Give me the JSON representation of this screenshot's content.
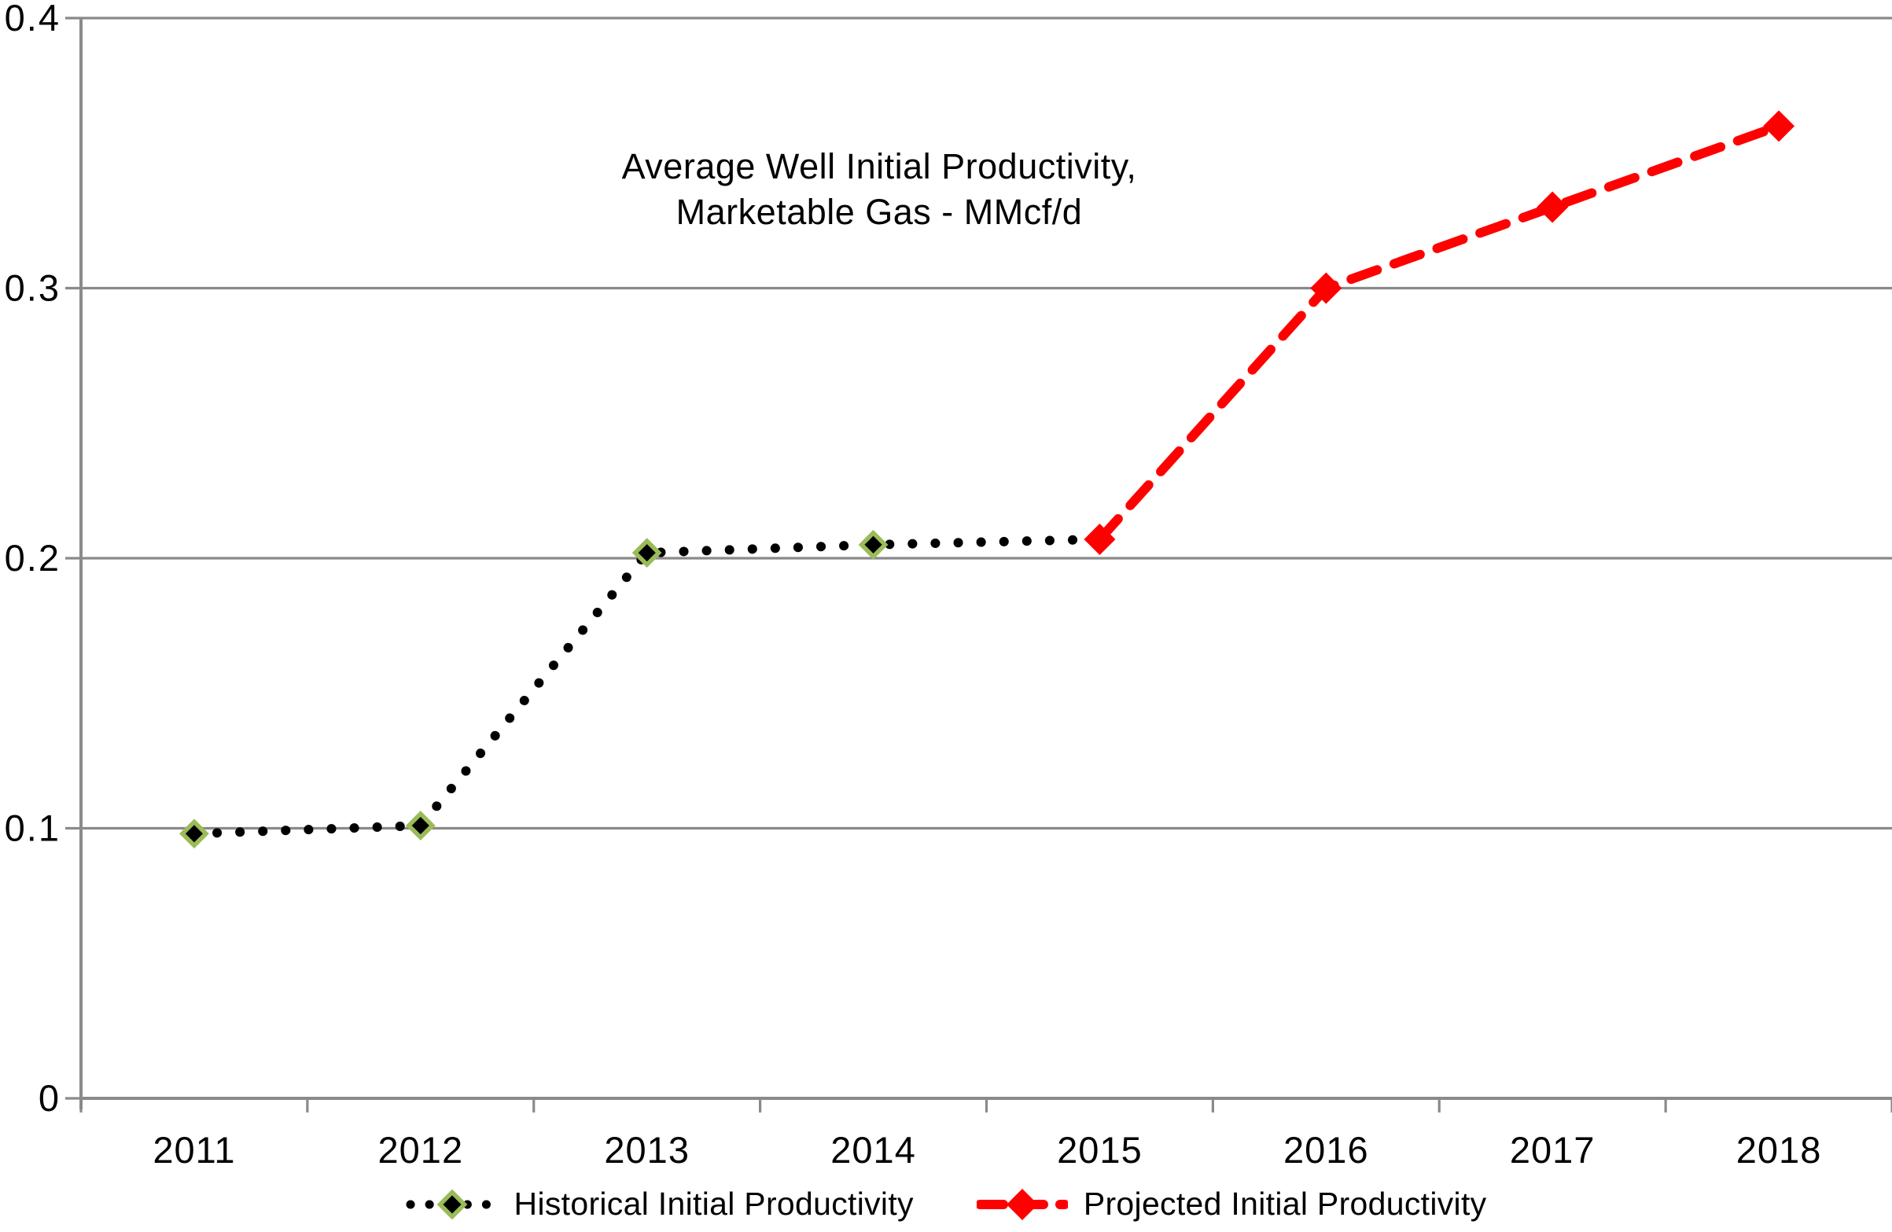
{
  "chart_data": {
    "type": "line",
    "title_line1": "Average Well Initial Productivity,",
    "title_line2": "Marketable Gas - MMcf/d",
    "categories": [
      "2011",
      "2012",
      "2013",
      "2014",
      "2015",
      "2016",
      "2017",
      "2018"
    ],
    "series": [
      {
        "name": "Historical Initial Productivity",
        "x": [
          "2011",
          "2012",
          "2013",
          "2014",
          "2015"
        ],
        "values": [
          0.098,
          0.101,
          0.202,
          0.205,
          0.207
        ],
        "line_style": "dotted",
        "color": "#000000",
        "marker": "diamond",
        "marker_fill": "#000000",
        "marker_border": "#9BBB59"
      },
      {
        "name": "Projected Initial Productivity",
        "x": [
          "2015",
          "2016",
          "2017",
          "2018"
        ],
        "values": [
          0.207,
          0.3,
          0.33,
          0.36
        ],
        "line_style": "dashed",
        "color": "#FF0000",
        "marker": "diamond",
        "marker_fill": "#FF0000",
        "marker_border": "#FF0000"
      }
    ],
    "xlabel": "",
    "ylabel": "",
    "ylim": [
      0,
      0.4
    ],
    "y_tick_values": [
      0,
      0.1,
      0.2,
      0.3,
      0.4
    ],
    "y_tick_labels": [
      "0",
      "0.1",
      "0.2",
      "0.3",
      "0.4"
    ],
    "grid": true,
    "legend_position": "bottom",
    "axis_color": "#8a8a8a",
    "text_color": "#000000"
  }
}
